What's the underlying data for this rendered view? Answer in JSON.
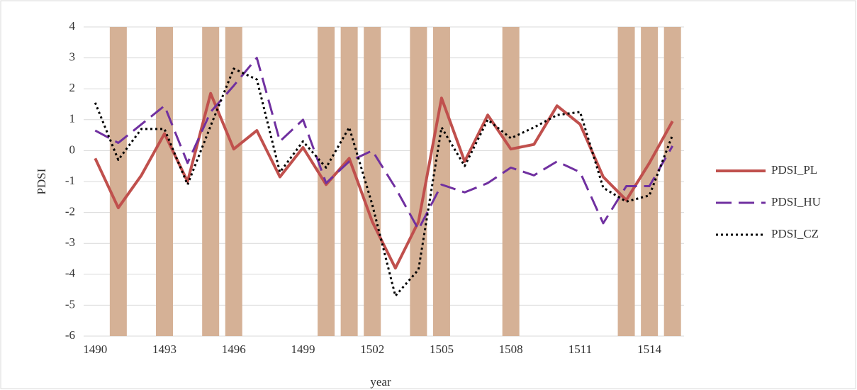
{
  "chart_data": {
    "type": "line",
    "x_label": "year",
    "y_label": "PDSI",
    "categories": [
      "1490",
      null,
      null,
      "1493",
      null,
      null,
      "1496",
      null,
      null,
      "1499",
      null,
      null,
      "1502",
      null,
      null,
      "1505",
      null,
      null,
      "1508",
      null,
      null,
      "1511",
      null,
      null,
      "1514",
      null
    ],
    "bars": {
      "color": "#d5b196",
      "values": [
        null,
        4,
        null,
        4,
        null,
        4,
        4,
        null,
        null,
        null,
        4,
        4,
        4,
        null,
        4,
        4,
        null,
        null,
        4,
        null,
        null,
        null,
        null,
        4,
        4,
        4
      ]
    },
    "series": [
      {
        "name": "PDSI_PL",
        "color": "#c0504d",
        "dash": "solid",
        "values": [
          -0.25,
          -1.85,
          -0.8,
          0.55,
          -1.0,
          1.85,
          0.05,
          0.65,
          -0.85,
          0.1,
          -1.1,
          -0.25,
          -2.3,
          -3.8,
          -2.3,
          1.7,
          -0.35,
          1.15,
          0.05,
          0.2,
          1.45,
          0.85,
          -0.85,
          -1.6,
          -0.4,
          0.95
        ]
      },
      {
        "name": "PDSI_HU",
        "color": "#7030a0",
        "dash": "dashed",
        "values": [
          0.65,
          0.25,
          0.85,
          1.45,
          -0.4,
          1.25,
          2.1,
          3.0,
          0.3,
          1.0,
          -1.05,
          -0.35,
          0.0,
          -1.2,
          -2.55,
          -1.1,
          -1.35,
          -1.05,
          -0.55,
          -0.8,
          -0.35,
          -0.7,
          -2.35,
          -1.15,
          -1.15,
          0.15
        ]
      },
      {
        "name": "PDSI_CZ",
        "color": "#000000",
        "dash": "dotted",
        "values": [
          1.55,
          -0.3,
          0.7,
          0.7,
          -1.1,
          0.8,
          2.65,
          2.3,
          -0.7,
          0.3,
          -0.55,
          0.75,
          -1.75,
          -4.7,
          -3.85,
          0.75,
          -0.5,
          1.0,
          0.4,
          0.75,
          1.15,
          1.25,
          -1.2,
          -1.65,
          -1.45,
          0.5
        ]
      }
    ],
    "ylim": [
      -6,
      4
    ],
    "yticks": [
      -6,
      -5,
      -4,
      -3,
      -2,
      -1,
      0,
      1,
      2,
      3,
      4
    ],
    "grid": true,
    "legend": "right"
  }
}
